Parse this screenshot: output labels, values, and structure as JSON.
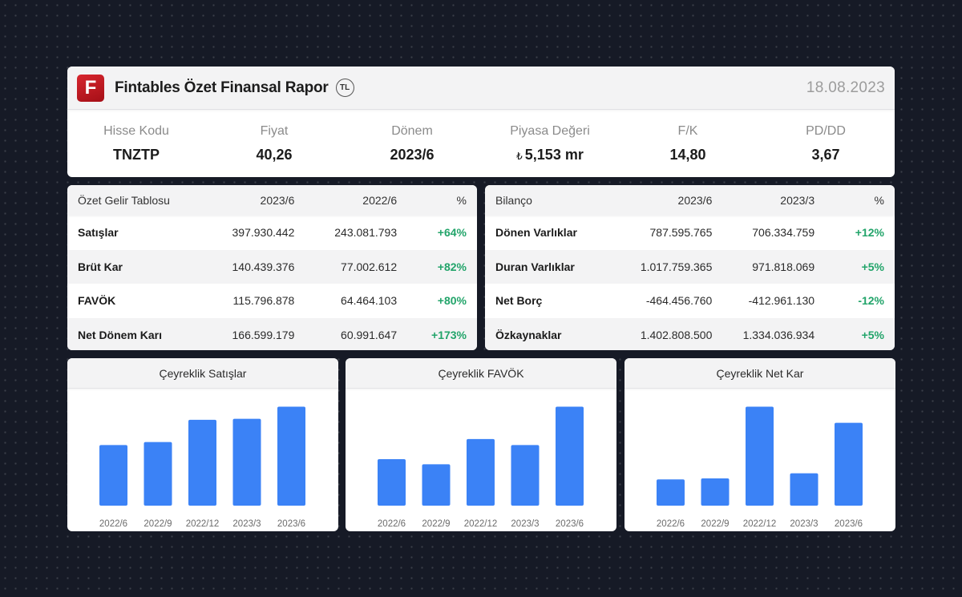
{
  "header": {
    "logo_letter": "F",
    "title": "Fintables Özet Finansal Rapor",
    "currency_badge": "TL",
    "date": "18.08.2023"
  },
  "metrics": [
    {
      "label": "Hisse Kodu",
      "value": "TNZTP"
    },
    {
      "label": "Fiyat",
      "value": "40,26"
    },
    {
      "label": "Dönem",
      "value": "2023/6"
    },
    {
      "label": "Piyasa Değeri",
      "prefix": "₺",
      "value": "5,153 mr"
    },
    {
      "label": "F/K",
      "value": "14,80"
    },
    {
      "label": "PD/DD",
      "value": "3,67"
    }
  ],
  "income": {
    "headers": [
      "Özet Gelir Tablosu",
      "2023/6",
      "2022/6",
      "%"
    ],
    "rows": [
      [
        "Satışlar",
        "397.930.442",
        "243.081.793",
        "+64%"
      ],
      [
        "Brüt Kar",
        "140.439.376",
        "77.002.612",
        "+82%"
      ],
      [
        "FAVÖK",
        "115.796.878",
        "64.464.103",
        "+80%"
      ],
      [
        "Net Dönem Karı",
        "166.599.179",
        "60.991.647",
        "+173%"
      ]
    ]
  },
  "balance": {
    "headers": [
      "Bilanço",
      "2023/6",
      "2023/3",
      "%"
    ],
    "rows": [
      [
        "Dönen Varlıklar",
        "787.595.765",
        "706.334.759",
        "+12%"
      ],
      [
        "Duran Varlıklar",
        "1.017.759.365",
        "971.818.069",
        "+5%"
      ],
      [
        "Net Borç",
        "-464.456.760",
        "-412.961.130",
        "-12%"
      ],
      [
        "Özkaynaklar",
        "1.402.808.500",
        "1.334.036.934",
        "+5%"
      ]
    ]
  },
  "colors": {
    "bar": "#3b82f6",
    "positive": "#22a46a",
    "brand": "#c81e26"
  },
  "chart_data": [
    {
      "type": "bar",
      "title": "Çeyreklik Satışlar",
      "categories": [
        "2022/6",
        "2022/9",
        "2022/12",
        "2023/3",
        "2023/6"
      ],
      "values": [
        60,
        63,
        85,
        86,
        98
      ],
      "ylim": [
        0,
        100
      ],
      "grid": false
    },
    {
      "type": "bar",
      "title": "Çeyreklik FAVÖK",
      "categories": [
        "2022/6",
        "2022/9",
        "2022/12",
        "2023/3",
        "2023/6"
      ],
      "values": [
        46,
        41,
        66,
        60,
        98
      ],
      "ylim": [
        0,
        100
      ],
      "grid": false
    },
    {
      "type": "bar",
      "title": "Çeyreklik Net Kar",
      "categories": [
        "2022/6",
        "2022/9",
        "2022/12",
        "2023/3",
        "2023/6"
      ],
      "values": [
        26,
        27,
        98,
        32,
        82
      ],
      "ylim": [
        0,
        100
      ],
      "grid": false
    }
  ]
}
